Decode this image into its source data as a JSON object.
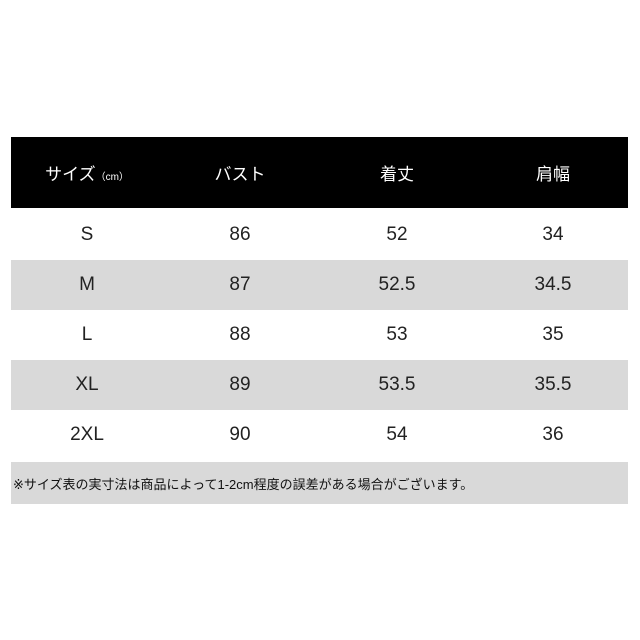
{
  "header": {
    "size": "サイズ",
    "unit": "（cm）",
    "bust": "バスト",
    "length": "着丈",
    "shoulder": "肩幅"
  },
  "rows": [
    {
      "size": "S",
      "bust": "86",
      "length": "52",
      "shoulder": "34"
    },
    {
      "size": "M",
      "bust": "87",
      "length": "52.5",
      "shoulder": "34.5"
    },
    {
      "size": "L",
      "bust": "88",
      "length": "53",
      "shoulder": "35"
    },
    {
      "size": "XL",
      "bust": "89",
      "length": "53.5",
      "shoulder": "35.5"
    },
    {
      "size": "2XL",
      "bust": "90",
      "length": "54",
      "shoulder": "36"
    }
  ],
  "note": "※サイズ表の実寸法は商品によって1-2cm程度の誤差がある場合がございます。",
  "colors": {
    "header_bg": "#000000",
    "stripe": "#d9d9d9"
  }
}
